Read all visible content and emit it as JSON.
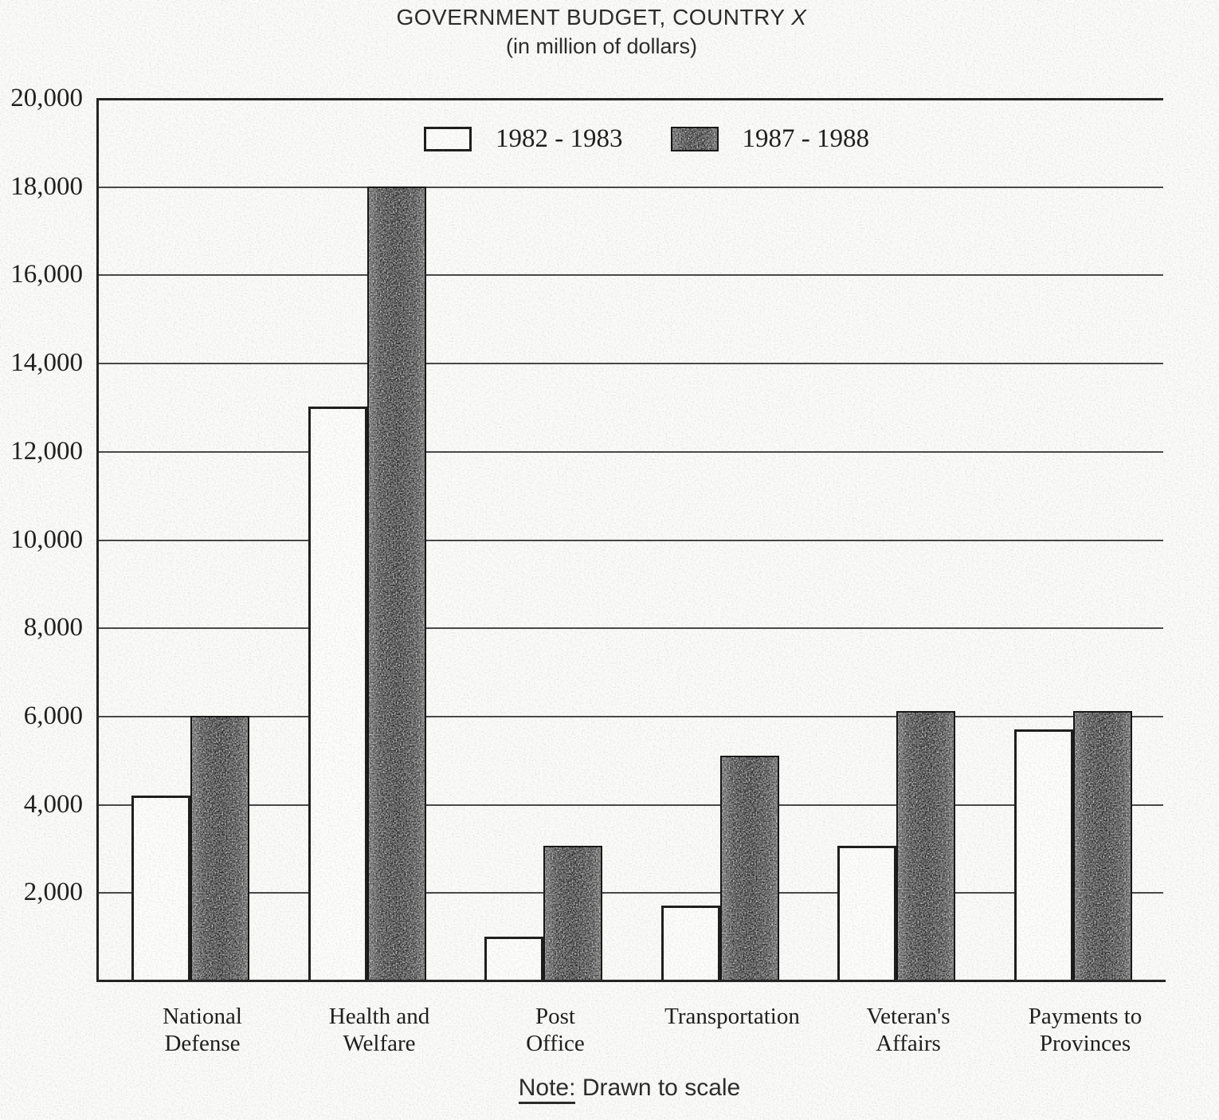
{
  "page": {
    "title_main": "GOVERNMENT BUDGET, COUNTRY",
    "title_x": "X",
    "subtitle": "(in million of dollars)",
    "note_label": "Note:",
    "note_text": "Drawn to scale"
  },
  "legend": {
    "items": [
      {
        "label": "1982 - 1983",
        "swatch": "light"
      },
      {
        "label": "1987 - 1988",
        "swatch": "dark"
      }
    ]
  },
  "colors": {
    "ink": "#1f1f1f",
    "paper": "#fbfbf9",
    "bar_light_fill": "#fdfdfc",
    "bar_dark_fill": "#2e2e2e",
    "grid_line": "#2e2e2e"
  },
  "chart_data": {
    "type": "bar",
    "title": "GOVERNMENT BUDGET, COUNTRY X",
    "subtitle": "(in million of dollars)",
    "note": "Drawn to scale",
    "units": "million dollars",
    "categories": [
      "National\nDefense",
      "Health and\nWelfare",
      "Post\nOffice",
      "Transportation",
      "Veteran's\nAffairs",
      "Payments to\nProvinces"
    ],
    "series": [
      {
        "name": "1982 - 1983",
        "style": "light",
        "values": [
          4200,
          13000,
          1000,
          1700,
          3050,
          5700
        ]
      },
      {
        "name": "1987 - 1988",
        "style": "dark",
        "values": [
          6000,
          18000,
          3050,
          5100,
          6100,
          6100
        ]
      }
    ],
    "xlabel": "",
    "ylabel": "",
    "ylim": [
      0,
      20000
    ],
    "ytick_interval": 2000,
    "ytick_labels": [
      "2,000",
      "4,000",
      "6,000",
      "8,000",
      "10,000",
      "12,000",
      "14,000",
      "16,000",
      "18,000",
      "20,000"
    ],
    "grid": true,
    "legend_position": "top-center"
  }
}
